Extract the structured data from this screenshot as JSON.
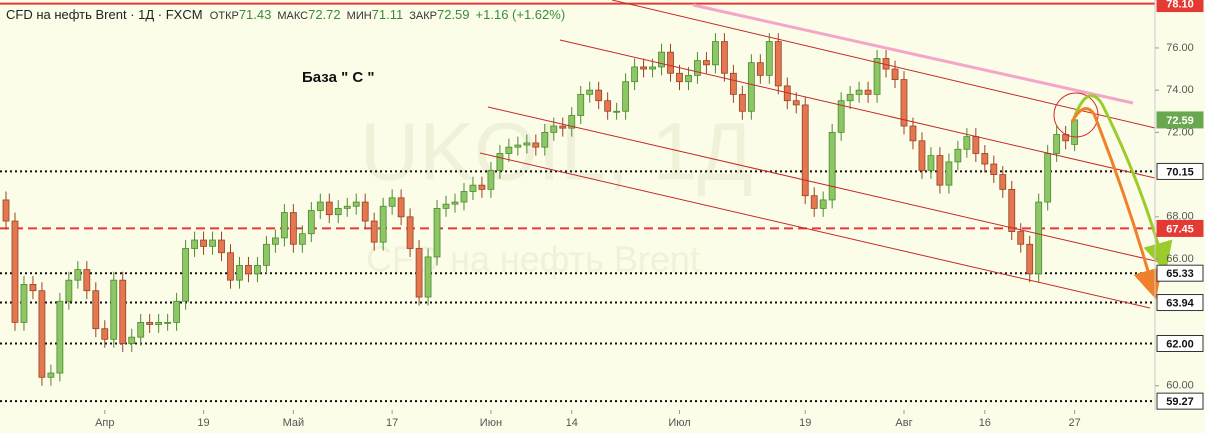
{
  "chart_data": {
    "type": "candlestick",
    "title": "CFD на нефть Brent · 1Д · FXCM",
    "header_stats": [
      {
        "label": "ОТКР",
        "value": 71.43
      },
      {
        "label": "МАКС",
        "value": 72.72
      },
      {
        "label": "МИН",
        "value": 71.11
      },
      {
        "label": "ЗАКР",
        "value": 72.59
      }
    ],
    "change": "+1.16 (+1.62%)",
    "watermark": "UKOIL, 1Д",
    "watermark_subtitle": "CFD на нефть Brent",
    "annotation": "База  \" С \"",
    "categories": [
      null,
      null,
      null,
      null,
      null,
      null,
      null,
      null,
      null,
      null,
      null,
      "Апр",
      null,
      null,
      null,
      null,
      null,
      null,
      null,
      null,
      null,
      null,
      "19",
      null,
      null,
      null,
      null,
      null,
      null,
      null,
      null,
      null,
      "Май",
      null,
      null,
      null,
      null,
      null,
      null,
      null,
      null,
      null,
      null,
      "17",
      null,
      null,
      null,
      null,
      null,
      null,
      null,
      null,
      null,
      null,
      "Июн",
      null,
      null,
      null,
      null,
      null,
      null,
      null,
      null,
      "14",
      null,
      null,
      null,
      null,
      null,
      null,
      null,
      null,
      null,
      null,
      null,
      "Июл",
      null,
      null,
      null,
      null,
      null,
      null,
      null,
      null,
      null,
      null,
      null,
      null,
      null,
      "19",
      null,
      null,
      null,
      null,
      null,
      null,
      null,
      null,
      null,
      null,
      "Авг",
      null,
      null,
      null,
      null,
      null,
      null,
      null,
      null,
      "16",
      null,
      null,
      null,
      null,
      null,
      null,
      null,
      null,
      null,
      "27"
    ],
    "open": [
      68.8,
      67.8,
      63.0,
      64.8,
      64.5,
      60.4,
      60.6,
      64.0,
      65.0,
      65.5,
      64.5,
      62.7,
      62.2,
      65.0,
      62.0,
      62.3,
      63.0,
      62.9,
      63.0,
      63.0,
      64.0,
      66.5,
      66.9,
      66.6,
      66.9,
      66.3,
      65.0,
      65.7,
      65.3,
      65.7,
      66.7,
      67.0,
      68.2,
      66.7,
      67.2,
      68.3,
      68.7,
      68.1,
      68.4,
      68.5,
      68.7,
      67.8,
      66.8,
      68.5,
      68.9,
      68.0,
      66.5,
      64.2,
      66.1,
      68.4,
      68.6,
      68.7,
      69.2,
      69.5,
      69.3,
      70.2,
      71.0,
      71.3,
      71.4,
      71.5,
      71.3,
      72.0,
      72.3,
      72.2,
      72.8,
      73.8,
      74.0,
      73.5,
      73.0,
      73.0,
      74.4,
      75.1,
      75.0,
      75.1,
      75.8,
      74.8,
      74.4,
      74.7,
      75.4,
      75.2,
      76.3,
      74.8,
      73.8,
      73.0,
      75.3,
      74.7,
      76.3,
      74.2,
      73.5,
      73.3,
      69.0,
      68.4,
      68.8,
      72.0,
      73.5,
      73.8,
      74.0,
      73.8,
      75.5,
      75.0,
      74.5,
      72.3,
      71.6,
      70.2,
      70.9,
      69.5,
      70.6,
      71.2,
      71.8,
      71.0,
      70.5,
      70.0,
      69.3,
      67.3,
      66.7,
      65.3,
      68.7,
      71.0,
      71.9,
      71.43
    ],
    "high": [
      69.2,
      68.2,
      65.2,
      65.2,
      64.9,
      61.0,
      64.4,
      65.4,
      65.9,
      65.9,
      64.9,
      63.1,
      65.4,
      65.4,
      62.7,
      63.4,
      63.4,
      63.4,
      63.4,
      64.4,
      66.9,
      67.3,
      67.3,
      67.3,
      67.3,
      66.7,
      66.1,
      66.1,
      66.1,
      67.1,
      67.4,
      68.6,
      68.6,
      67.6,
      68.7,
      69.1,
      69.1,
      68.8,
      68.9,
      69.1,
      69.1,
      68.2,
      68.9,
      69.3,
      69.3,
      68.4,
      66.9,
      66.5,
      68.8,
      69.0,
      69.1,
      69.6,
      69.9,
      69.9,
      70.6,
      71.4,
      71.7,
      71.8,
      71.9,
      71.9,
      72.4,
      72.7,
      72.7,
      73.2,
      74.2,
      74.4,
      74.4,
      73.9,
      73.4,
      74.8,
      75.5,
      75.5,
      75.5,
      76.2,
      76.2,
      75.2,
      75.1,
      75.8,
      75.8,
      76.7,
      76.7,
      75.2,
      74.2,
      75.7,
      75.7,
      76.7,
      76.7,
      74.6,
      73.9,
      73.7,
      69.4,
      69.2,
      72.4,
      73.9,
      74.2,
      74.4,
      74.4,
      75.9,
      75.9,
      75.4,
      74.9,
      72.7,
      72.0,
      71.3,
      71.3,
      71.0,
      71.6,
      72.2,
      72.2,
      71.4,
      70.9,
      70.4,
      69.7,
      67.7,
      67.1,
      69.1,
      71.4,
      72.3,
      72.3,
      72.72
    ],
    "low": [
      67.4,
      62.6,
      62.6,
      64.1,
      60.0,
      60.0,
      60.2,
      63.6,
      64.6,
      64.1,
      62.3,
      61.8,
      61.8,
      61.6,
      61.6,
      61.9,
      62.5,
      62.5,
      62.6,
      62.6,
      63.6,
      66.1,
      66.2,
      66.2,
      65.9,
      64.6,
      64.6,
      64.9,
      64.9,
      65.3,
      66.3,
      66.6,
      66.3,
      66.3,
      66.8,
      67.9,
      67.7,
      67.7,
      68.0,
      68.1,
      67.4,
      66.4,
      66.4,
      68.1,
      67.6,
      66.1,
      63.8,
      63.8,
      65.7,
      68.0,
      68.2,
      68.3,
      68.8,
      68.9,
      68.9,
      69.8,
      70.6,
      70.9,
      71.0,
      70.9,
      70.9,
      71.6,
      71.8,
      71.8,
      72.4,
      73.4,
      73.1,
      72.6,
      72.6,
      72.6,
      74.0,
      74.6,
      74.6,
      74.7,
      74.4,
      74.0,
      74.0,
      74.3,
      74.8,
      74.8,
      74.4,
      73.4,
      72.6,
      72.6,
      74.3,
      74.3,
      73.8,
      73.1,
      72.9,
      68.6,
      68.0,
      68.0,
      68.4,
      71.6,
      73.1,
      73.4,
      73.4,
      73.4,
      74.6,
      74.1,
      71.9,
      71.2,
      69.8,
      69.8,
      69.1,
      69.1,
      70.2,
      70.8,
      70.6,
      70.1,
      69.6,
      68.9,
      66.9,
      66.3,
      64.9,
      64.9,
      68.3,
      70.6,
      71.2,
      71.11
    ],
    "close": [
      67.8,
      63.0,
      64.8,
      64.5,
      60.4,
      60.6,
      64.0,
      65.0,
      65.5,
      64.5,
      62.7,
      62.2,
      65.0,
      62.0,
      62.3,
      63.0,
      62.9,
      63.0,
      63.0,
      64.0,
      66.5,
      66.9,
      66.6,
      66.9,
      66.3,
      65.0,
      65.7,
      65.3,
      65.7,
      66.7,
      67.0,
      68.2,
      66.7,
      67.2,
      68.3,
      68.7,
      68.1,
      68.4,
      68.5,
      68.7,
      67.8,
      66.8,
      68.5,
      68.9,
      68.0,
      66.5,
      64.2,
      66.1,
      68.4,
      68.6,
      68.7,
      69.2,
      69.5,
      69.3,
      70.2,
      71.0,
      71.3,
      71.4,
      71.5,
      71.3,
      72.0,
      72.3,
      72.2,
      72.8,
      73.8,
      74.0,
      73.5,
      73.0,
      73.0,
      74.4,
      75.1,
      75.0,
      75.1,
      75.8,
      74.8,
      74.4,
      74.7,
      75.4,
      75.2,
      76.3,
      74.8,
      73.8,
      73.0,
      75.3,
      74.7,
      76.3,
      74.2,
      73.5,
      73.3,
      69.0,
      68.4,
      68.8,
      72.0,
      73.5,
      73.8,
      74.0,
      73.8,
      75.5,
      75.0,
      74.5,
      72.3,
      71.6,
      70.2,
      70.9,
      69.5,
      70.6,
      71.2,
      71.8,
      71.0,
      70.5,
      70.0,
      69.3,
      67.3,
      66.7,
      65.3,
      68.7,
      71.0,
      71.9,
      71.6,
      72.59
    ],
    "up_color": "#8cc665",
    "down_color": "#e3774f",
    "ylim": [
      58.85,
      78.27
    ],
    "yticks": [
      {
        "value": 76,
        "label": "76.00"
      },
      {
        "value": 74,
        "label": "74.00"
      },
      {
        "value": 72,
        "label": "72.00"
      },
      {
        "value": 68,
        "label": "68.00"
      },
      {
        "value": 66,
        "label": "66.00"
      },
      {
        "value": 60,
        "label": "60.00"
      }
    ],
    "grid": false,
    "levels": [
      {
        "value": 78.1,
        "label": "78.10",
        "color": "#e53935",
        "style": "solid"
      },
      {
        "value": 70.15,
        "label": "70.15",
        "color": "#111111",
        "style": "dotted"
      },
      {
        "value": 67.45,
        "label": "67.45",
        "color": "#e53935",
        "style": "dashed"
      },
      {
        "value": 65.33,
        "label": "65.33",
        "color": "#111111",
        "style": "dotted"
      },
      {
        "value": 63.94,
        "label": "63.94",
        "color": "#111111",
        "style": "dotted"
      },
      {
        "value": 62.0,
        "label": "62.00",
        "color": "#111111",
        "style": "dotted"
      },
      {
        "value": 59.27,
        "label": "59.27",
        "color": "#111111",
        "style": "dotted"
      }
    ],
    "last_price": {
      "value": 72.59,
      "label": "72.59",
      "color": "#6aa84f"
    }
  }
}
